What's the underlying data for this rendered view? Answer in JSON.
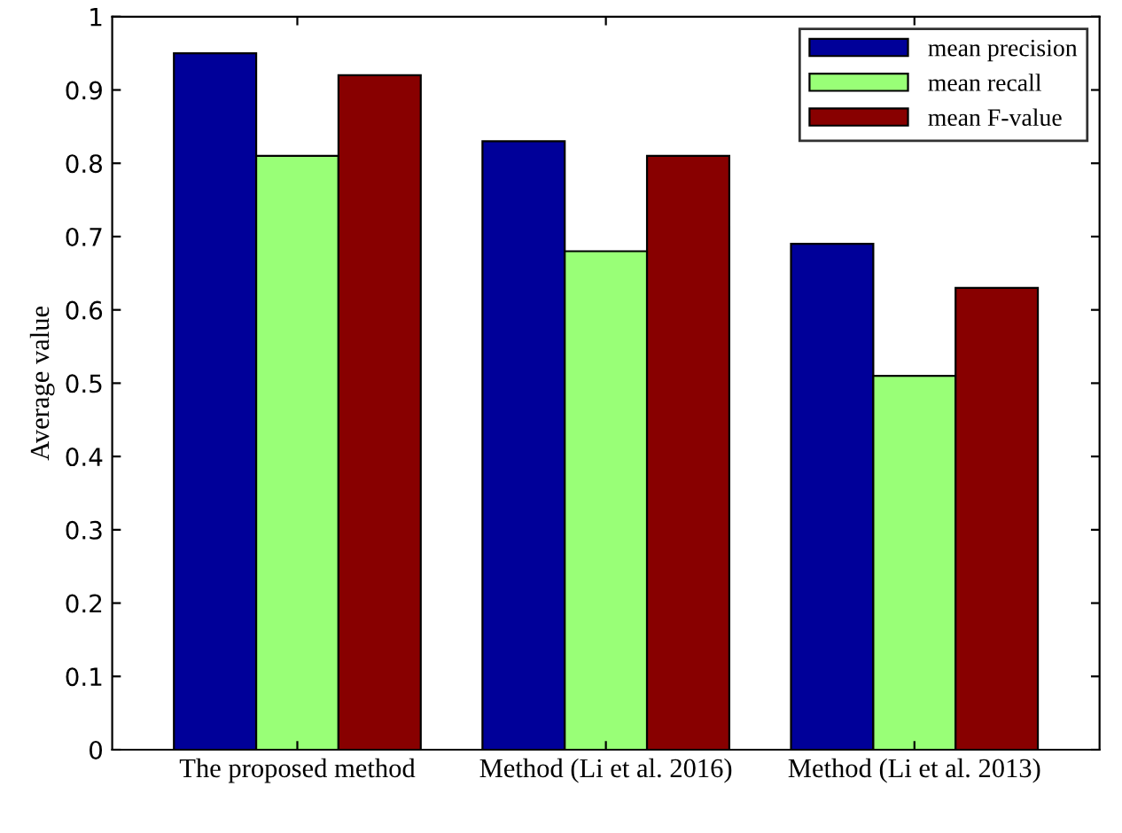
{
  "chart_data": {
    "type": "bar",
    "ylabel": "Average value",
    "categories": [
      "The proposed method",
      "Method (Li et al. 2016)",
      "Method (Li et al. 2013)"
    ],
    "series": [
      {
        "name": "mean precision",
        "color": "#000099",
        "values": [
          0.95,
          0.83,
          0.69
        ]
      },
      {
        "name": "mean recall",
        "color": "#99ff77",
        "values": [
          0.81,
          0.68,
          0.51
        ]
      },
      {
        "name": "mean F-value",
        "color": "#880000",
        "values": [
          0.92,
          0.81,
          0.63
        ]
      }
    ],
    "ylim": [
      0,
      1
    ],
    "yticks": [
      0,
      0.1,
      0.2,
      0.3,
      0.4,
      0.5,
      0.6,
      0.7,
      0.8,
      0.9,
      1
    ],
    "grid": false,
    "legend": "top right"
  }
}
